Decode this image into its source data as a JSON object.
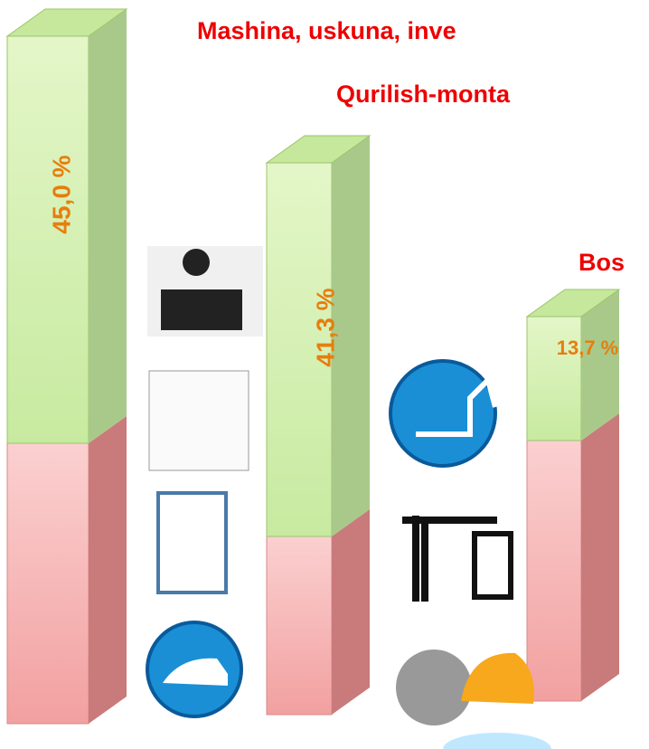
{
  "chart_data": {
    "type": "bar",
    "categories": [
      "Mashina, uskuna, inve",
      "Qurilish-monta",
      "Bos"
    ],
    "values": [
      45.0,
      41.3,
      13.7
    ],
    "value_labels": [
      "45,0 %",
      "41,3 %",
      "13,7 %"
    ],
    "color": "#d6f0b0"
  }
}
